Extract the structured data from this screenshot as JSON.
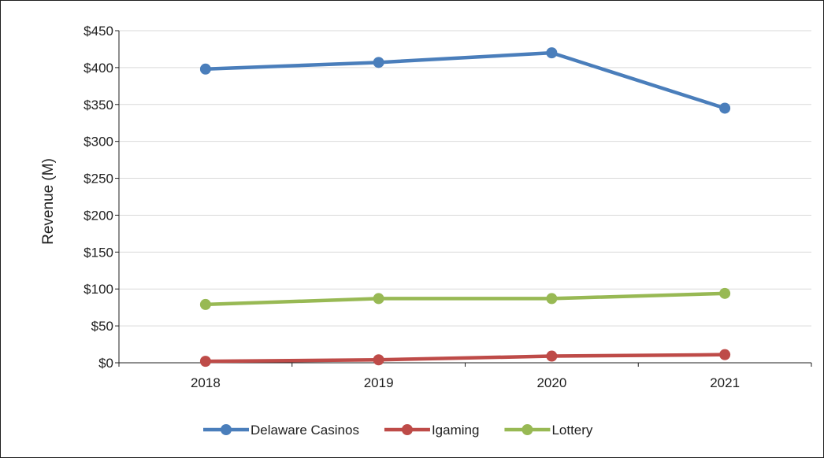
{
  "chart_data": {
    "type": "line",
    "title": "",
    "xlabel": "",
    "ylabel": "Revenue (M)",
    "categories": [
      "2018",
      "2019",
      "2020",
      "2021"
    ],
    "ylim": [
      0,
      450
    ],
    "yticks": [
      0,
      50,
      100,
      150,
      200,
      250,
      300,
      350,
      400,
      450
    ],
    "ytick_labels": [
      "$0",
      "$50",
      "$100",
      "$150",
      "$200",
      "$250",
      "$300",
      "$350",
      "$400",
      "$450"
    ],
    "grid": true,
    "legend_position": "bottom",
    "series": [
      {
        "name": "Delaware Casinos",
        "color": "#4a7ebb",
        "values": [
          398,
          407,
          420,
          345
        ]
      },
      {
        "name": "Igaming",
        "color": "#be4b48",
        "values": [
          2,
          4,
          9,
          11
        ]
      },
      {
        "name": "Lottery",
        "color": "#98b954",
        "values": [
          79,
          87,
          87,
          94
        ]
      }
    ]
  }
}
